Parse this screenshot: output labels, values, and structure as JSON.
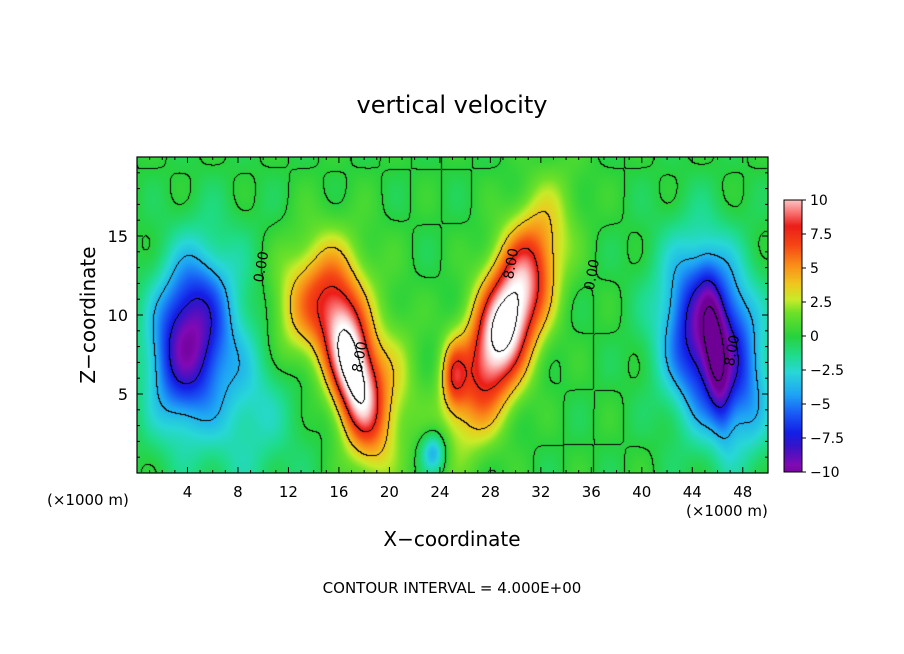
{
  "chart_data": {
    "type": "heatmap",
    "title": "vertical velocity",
    "xlabel": "X−coordinate",
    "ylabel": "Z−coordinate",
    "x_units": "(×1000 m)",
    "z_units": "(×1000 m)",
    "xlim": [
      0,
      50
    ],
    "ylim": [
      0,
      20
    ],
    "x_ticks": [
      4,
      8,
      12,
      16,
      20,
      24,
      28,
      32,
      36,
      40,
      44,
      48
    ],
    "x_tick_labels": [
      "4",
      "8",
      "12",
      "16",
      "20",
      "24",
      "28",
      "32",
      "36",
      "40",
      "44",
      "48"
    ],
    "y_ticks": [
      5,
      10,
      15
    ],
    "y_tick_labels": [
      "5",
      "10",
      "15"
    ],
    "colorbar": {
      "min": -10,
      "max": 10,
      "ticks": [
        10,
        7.5,
        5,
        2.5,
        0,
        -2.5,
        -5,
        -7.5,
        -10
      ],
      "tick_labels": [
        "10",
        "7.5",
        "5",
        "2.5",
        "0",
        "−2.5",
        "−5",
        "−7.5",
        "−10"
      ]
    },
    "contour_interval": 4,
    "contour_labels": [
      {
        "text": "0.00",
        "x": 10.2,
        "z": 13.0
      },
      {
        "text": "0.00",
        "x": 36.4,
        "z": 12.5
      },
      {
        "text": "8.00",
        "x": 18.0,
        "z": 7.3
      },
      {
        "text": "8.00",
        "x": 30.0,
        "z": 13.2
      },
      {
        "text": "8.00",
        "x": 47.5,
        "z": 7.7
      }
    ],
    "features": [
      {
        "kind": "updraft",
        "x": 17.2,
        "z": 6.3,
        "peak": 12
      },
      {
        "kind": "updraft",
        "x": 29.3,
        "z": 9.3,
        "peak": 13
      },
      {
        "kind": "updraft",
        "x": 13.8,
        "z": 10.6,
        "peak": 6
      },
      {
        "kind": "updraft",
        "x": 25.1,
        "z": 6.2,
        "peak": 5
      },
      {
        "kind": "downdraft",
        "x": 3.6,
        "z": 8.0,
        "peak": -9.5
      },
      {
        "kind": "downdraft",
        "x": 45.5,
        "z": 8.4,
        "peak": -10.5
      },
      {
        "kind": "downdraft",
        "x": 23.5,
        "z": 1.3,
        "peak": -4
      }
    ],
    "footer": "CONTOUR INTERVAL = 4.000E+00"
  }
}
